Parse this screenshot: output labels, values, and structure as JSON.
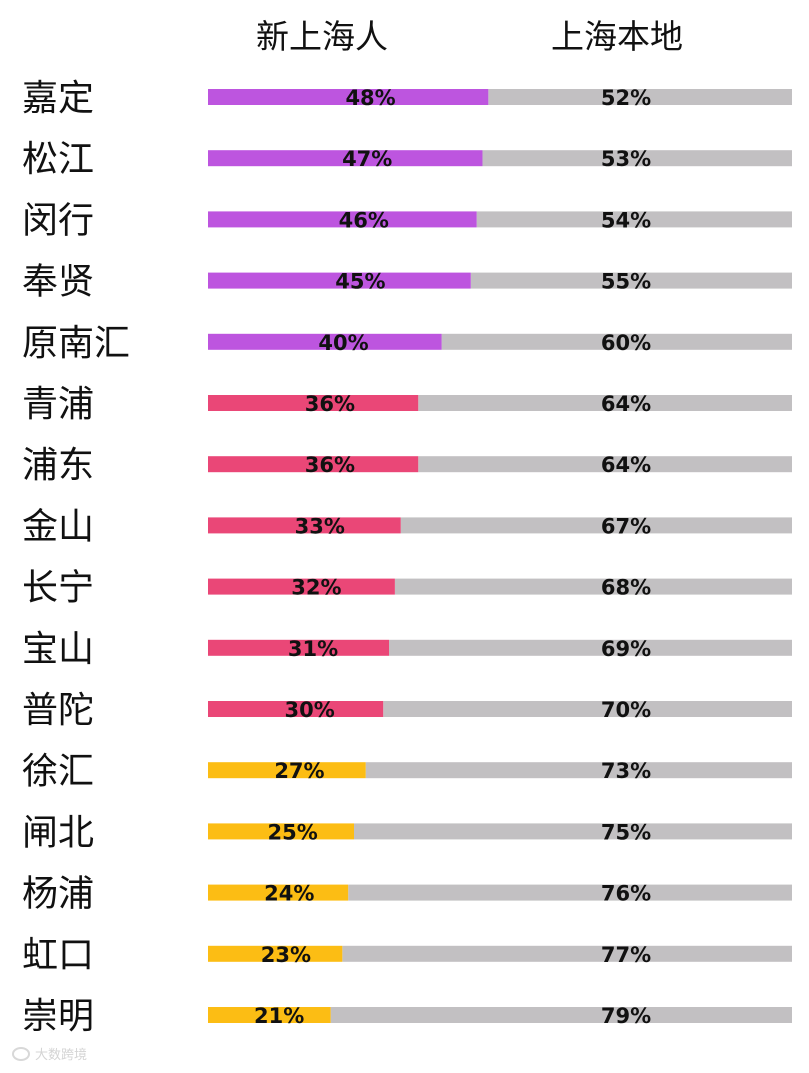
{
  "chart_data": {
    "type": "bar",
    "stacked": true,
    "orientation": "horizontal",
    "headers": {
      "left": "新上海人",
      "right": "上海本地"
    },
    "categories": [
      "嘉定",
      "松江",
      "闵行",
      "奉贤",
      "原南汇",
      "青浦",
      "浦东",
      "金山",
      "长宁",
      "宝山",
      "普陀",
      "徐汇",
      "闸北",
      "杨浦",
      "虹口",
      "崇明"
    ],
    "series": [
      {
        "name": "新上海人",
        "values": [
          48,
          47,
          46,
          45,
          40,
          36,
          36,
          33,
          32,
          31,
          30,
          27,
          25,
          24,
          23,
          21
        ],
        "labels": [
          "48%",
          "47%",
          "46%",
          "45%",
          "40%",
          "36%",
          "36%",
          "33%",
          "32%",
          "31%",
          "30%",
          "27%",
          "25%",
          "24%",
          "23%",
          "21%"
        ],
        "colors": [
          "#bd55df",
          "#bd55df",
          "#bd55df",
          "#bd55df",
          "#bd55df",
          "#ea4777",
          "#ea4777",
          "#ea4777",
          "#ea4777",
          "#ea4777",
          "#ea4777",
          "#fcbd14",
          "#fcbd14",
          "#fcbd14",
          "#fcbd14",
          "#fcbd14"
        ]
      },
      {
        "name": "上海本地",
        "values": [
          52,
          53,
          54,
          55,
          60,
          64,
          64,
          67,
          68,
          69,
          70,
          73,
          75,
          76,
          77,
          79
        ],
        "labels": [
          "52%",
          "53%",
          "54%",
          "55%",
          "60%",
          "64%",
          "64%",
          "67%",
          "68%",
          "69%",
          "70%",
          "73%",
          "75%",
          "76%",
          "77%",
          "79%"
        ],
        "color": "#c2c0c2"
      }
    ],
    "xlim": [
      0,
      100
    ],
    "grid": false,
    "legend": "none"
  },
  "watermark": {
    "text": "大数跨境",
    "icon": "logo-icon"
  }
}
